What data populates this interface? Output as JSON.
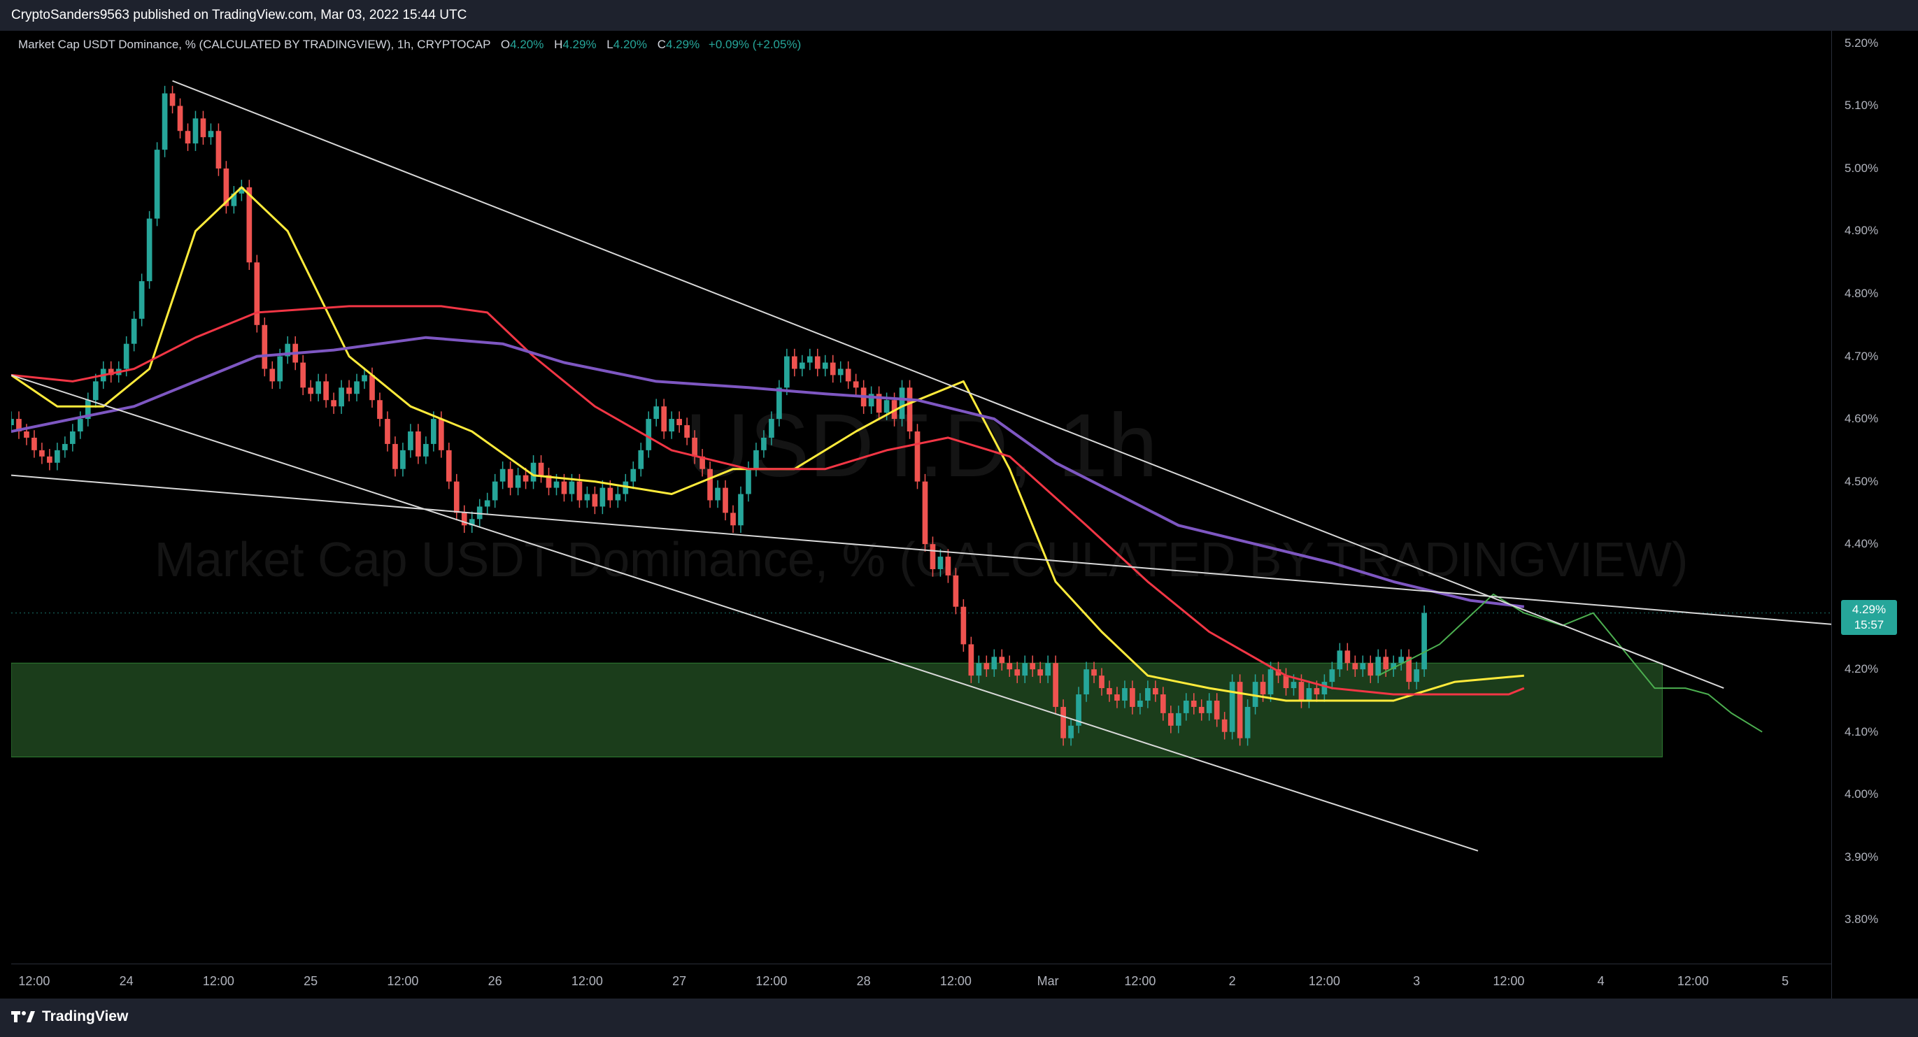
{
  "header": {
    "publish_text": "CryptoSanders9563 published on TradingView.com, Mar 03, 2022 15:44 UTC"
  },
  "legend": {
    "symbol": "Market Cap USDT Dominance, % (CALCULATED BY TRADINGVIEW), 1h, CRYPTOCAP",
    "o_label": "O",
    "o_value": "4.20%",
    "h_label": "H",
    "h_value": "4.29%",
    "l_label": "L",
    "l_value": "4.20%",
    "c_label": "C",
    "c_value": "4.29%",
    "change": "+0.09% (+2.05%)"
  },
  "watermark": {
    "ticker": "USDT.D, 1h",
    "name": "Market Cap USDT Dominance, % (CALCULATED BY TRADINGVIEW)"
  },
  "last_price": {
    "value": "4.29%",
    "countdown": "15:57"
  },
  "footer": {
    "brand": "TradingView"
  },
  "colors": {
    "up": "#26a69a",
    "down": "#ef5350",
    "ma_fast": "#ffeb3b",
    "ma_mid": "#f23645",
    "ma_slow": "#7e57c2",
    "zone": "#1b3d1b",
    "trendline": "#d9d9d9",
    "projection": "#4caf50"
  },
  "chart_data": {
    "type": "candlestick",
    "timeframe": "1h",
    "y_unit": "%",
    "ylim": [
      3.73,
      5.22
    ],
    "y_ticks": [
      "5.20%",
      "5.10%",
      "5.00%",
      "4.90%",
      "4.80%",
      "4.70%",
      "4.60%",
      "4.50%",
      "4.40%",
      "4.20%",
      "4.10%",
      "4.00%",
      "3.90%",
      "3.80%"
    ],
    "y_tick_values": [
      5.2,
      5.1,
      5.0,
      4.9,
      4.8,
      4.7,
      4.6,
      4.5,
      4.4,
      4.2,
      4.1,
      4.0,
      3.9,
      3.8
    ],
    "x_start": "2022-02-23 09:00",
    "x_end": "2022-03-05 06:00",
    "x_ticks": [
      {
        "label": "12:00",
        "t": "2022-02-23 12:00"
      },
      {
        "label": "24",
        "t": "2022-02-24 00:00"
      },
      {
        "label": "12:00",
        "t": "2022-02-24 12:00"
      },
      {
        "label": "25",
        "t": "2022-02-25 00:00"
      },
      {
        "label": "12:00",
        "t": "2022-02-25 12:00"
      },
      {
        "label": "26",
        "t": "2022-02-26 00:00"
      },
      {
        "label": "12:00",
        "t": "2022-02-26 12:00"
      },
      {
        "label": "27",
        "t": "2022-02-27 00:00"
      },
      {
        "label": "12:00",
        "t": "2022-02-27 12:00"
      },
      {
        "label": "28",
        "t": "2022-02-28 00:00"
      },
      {
        "label": "12:00",
        "t": "2022-02-28 12:00"
      },
      {
        "label": "Mar",
        "t": "2022-03-01 00:00"
      },
      {
        "label": "12:00",
        "t": "2022-03-01 12:00"
      },
      {
        "label": "2",
        "t": "2022-03-02 00:00"
      },
      {
        "label": "12:00",
        "t": "2022-03-02 12:00"
      },
      {
        "label": "3",
        "t": "2022-03-03 00:00"
      },
      {
        "label": "12:00",
        "t": "2022-03-03 12:00"
      },
      {
        "label": "4",
        "t": "2022-03-04 00:00"
      },
      {
        "label": "12:00",
        "t": "2022-03-04 12:00"
      },
      {
        "label": "5",
        "t": "2022-03-05 00:00"
      }
    ],
    "candles_start": "2022-02-23 09:00",
    "candles_close": [
      4.6,
      4.58,
      4.57,
      4.55,
      4.54,
      4.53,
      4.55,
      4.56,
      4.58,
      4.6,
      4.63,
      4.66,
      4.68,
      4.67,
      4.68,
      4.72,
      4.76,
      4.82,
      4.92,
      5.03,
      5.12,
      5.1,
      5.06,
      5.04,
      5.08,
      5.05,
      5.06,
      5.0,
      4.94,
      4.96,
      4.97,
      4.85,
      4.75,
      4.68,
      4.66,
      4.7,
      4.72,
      4.69,
      4.65,
      4.64,
      4.66,
      4.63,
      4.62,
      4.65,
      4.64,
      4.66,
      4.67,
      4.63,
      4.6,
      4.56,
      4.52,
      4.55,
      4.58,
      4.54,
      4.56,
      4.6,
      4.55,
      4.5,
      4.45,
      4.43,
      4.44,
      4.46,
      4.47,
      4.5,
      4.52,
      4.49,
      4.51,
      4.5,
      4.53,
      4.51,
      4.49,
      4.5,
      4.48,
      4.5,
      4.47,
      4.48,
      4.46,
      4.49,
      4.47,
      4.48,
      4.5,
      4.52,
      4.55,
      4.6,
      4.62,
      4.58,
      4.6,
      4.59,
      4.57,
      4.54,
      4.52,
      4.47,
      4.49,
      4.45,
      4.43,
      4.48,
      4.52,
      4.55,
      4.57,
      4.6,
      4.65,
      4.7,
      4.68,
      4.69,
      4.7,
      4.68,
      4.69,
      4.67,
      4.68,
      4.66,
      4.65,
      4.62,
      4.64,
      4.61,
      4.63,
      4.6,
      4.65,
      4.58,
      4.5,
      4.4,
      4.36,
      4.38,
      4.35,
      4.3,
      4.24,
      4.19,
      4.21,
      4.2,
      4.22,
      4.21,
      4.2,
      4.19,
      4.21,
      4.2,
      4.19,
      4.21,
      4.14,
      4.09,
      4.11,
      4.16,
      4.2,
      4.19,
      4.17,
      4.16,
      4.15,
      4.17,
      4.14,
      4.15,
      4.17,
      4.16,
      4.13,
      4.11,
      4.13,
      4.15,
      4.14,
      4.13,
      4.15,
      4.12,
      4.1,
      4.18,
      4.09,
      4.14,
      4.18,
      4.16,
      4.2,
      4.19,
      4.17,
      4.18,
      4.15,
      4.17,
      4.16,
      4.18,
      4.2,
      4.23,
      4.21,
      4.2,
      4.21,
      4.19,
      4.22,
      4.2,
      4.21,
      4.22,
      4.18,
      4.2,
      4.29
    ],
    "series": [
      {
        "name": "MA fast",
        "color": "#ffeb3b",
        "points": [
          [
            "2022-02-23 09:00",
            4.67
          ],
          [
            "2022-02-23 15:00",
            4.62
          ],
          [
            "2022-02-23 21:00",
            4.62
          ],
          [
            "2022-02-24 03:00",
            4.68
          ],
          [
            "2022-02-24 09:00",
            4.9
          ],
          [
            "2022-02-24 15:00",
            4.97
          ],
          [
            "2022-02-24 21:00",
            4.9
          ],
          [
            "2022-02-25 05:00",
            4.7
          ],
          [
            "2022-02-25 13:00",
            4.62
          ],
          [
            "2022-02-25 21:00",
            4.58
          ],
          [
            "2022-02-26 05:00",
            4.51
          ],
          [
            "2022-02-26 13:00",
            4.5
          ],
          [
            "2022-02-26 23:00",
            4.48
          ],
          [
            "2022-02-27 07:00",
            4.52
          ],
          [
            "2022-02-27 15:00",
            4.52
          ],
          [
            "2022-02-27 23:00",
            4.58
          ],
          [
            "2022-02-28 05:00",
            4.62
          ],
          [
            "2022-02-28 13:00",
            4.66
          ],
          [
            "2022-02-28 19:00",
            4.52
          ],
          [
            "2022-03-01 01:00",
            4.34
          ],
          [
            "2022-03-01 07:00",
            4.26
          ],
          [
            "2022-03-01 13:00",
            4.19
          ],
          [
            "2022-03-01 21:00",
            4.17
          ],
          [
            "2022-03-02 07:00",
            4.15
          ],
          [
            "2022-03-02 13:00",
            4.15
          ],
          [
            "2022-03-02 21:00",
            4.15
          ],
          [
            "2022-03-03 05:00",
            4.18
          ],
          [
            "2022-03-03 14:00",
            4.19
          ]
        ]
      },
      {
        "name": "MA mid",
        "color": "#f23645",
        "points": [
          [
            "2022-02-23 09:00",
            4.67
          ],
          [
            "2022-02-23 17:00",
            4.66
          ],
          [
            "2022-02-24 01:00",
            4.68
          ],
          [
            "2022-02-24 09:00",
            4.73
          ],
          [
            "2022-02-24 17:00",
            4.77
          ],
          [
            "2022-02-25 05:00",
            4.78
          ],
          [
            "2022-02-25 17:00",
            4.78
          ],
          [
            "2022-02-25 23:00",
            4.77
          ],
          [
            "2022-02-26 05:00",
            4.7
          ],
          [
            "2022-02-26 13:00",
            4.62
          ],
          [
            "2022-02-26 23:00",
            4.55
          ],
          [
            "2022-02-27 09:00",
            4.52
          ],
          [
            "2022-02-27 19:00",
            4.52
          ],
          [
            "2022-02-28 03:00",
            4.55
          ],
          [
            "2022-02-28 11:00",
            4.57
          ],
          [
            "2022-02-28 19:00",
            4.54
          ],
          [
            "2022-03-01 05:00",
            4.43
          ],
          [
            "2022-03-01 13:00",
            4.34
          ],
          [
            "2022-03-01 21:00",
            4.26
          ],
          [
            "2022-03-02 07:00",
            4.19
          ],
          [
            "2022-03-02 13:00",
            4.17
          ],
          [
            "2022-03-02 21:00",
            4.16
          ],
          [
            "2022-03-03 05:00",
            4.16
          ],
          [
            "2022-03-03 12:00",
            4.16
          ],
          [
            "2022-03-03 14:00",
            4.17
          ]
        ]
      },
      {
        "name": "MA slow",
        "color": "#7e57c2",
        "points": [
          [
            "2022-02-23 09:00",
            4.58
          ],
          [
            "2022-02-23 17:00",
            4.6
          ],
          [
            "2022-02-24 01:00",
            4.62
          ],
          [
            "2022-02-24 09:00",
            4.66
          ],
          [
            "2022-02-24 17:00",
            4.7
          ],
          [
            "2022-02-25 03:00",
            4.71
          ],
          [
            "2022-02-25 15:00",
            4.73
          ],
          [
            "2022-02-26 01:00",
            4.72
          ],
          [
            "2022-02-26 09:00",
            4.69
          ],
          [
            "2022-02-26 21:00",
            4.66
          ],
          [
            "2022-02-27 09:00",
            4.65
          ],
          [
            "2022-02-27 19:00",
            4.64
          ],
          [
            "2022-02-28 07:00",
            4.63
          ],
          [
            "2022-02-28 17:00",
            4.6
          ],
          [
            "2022-03-01 01:00",
            4.53
          ],
          [
            "2022-03-01 09:00",
            4.48
          ],
          [
            "2022-03-01 17:00",
            4.43
          ],
          [
            "2022-03-02 03:00",
            4.4
          ],
          [
            "2022-03-02 13:00",
            4.37
          ],
          [
            "2022-03-02 21:00",
            4.34
          ],
          [
            "2022-03-03 07:00",
            4.31
          ],
          [
            "2022-03-03 14:00",
            4.3
          ]
        ]
      },
      {
        "name": "Projection",
        "color": "#4caf50",
        "points": [
          [
            "2022-03-02 19:00",
            4.19
          ],
          [
            "2022-03-03 03:00",
            4.24
          ],
          [
            "2022-03-03 10:00",
            4.32
          ],
          [
            "2022-03-03 14:00",
            4.29
          ],
          [
            "2022-03-03 19:00",
            4.27
          ],
          [
            "2022-03-03 23:00",
            4.29
          ],
          [
            "2022-03-04 07:00",
            4.17
          ],
          [
            "2022-03-04 11:00",
            4.17
          ],
          [
            "2022-03-04 14:00",
            4.16
          ],
          [
            "2022-03-04 17:00",
            4.13
          ],
          [
            "2022-03-04 21:00",
            4.1
          ]
        ]
      }
    ],
    "trendlines": [
      {
        "name": "channel-top",
        "from": [
          "2022-02-24 06:00",
          5.14
        ],
        "to": [
          "2022-03-04 16:00",
          4.17
        ]
      },
      {
        "name": "channel-bottom",
        "from": [
          "2022-02-23 09:00",
          4.67
        ],
        "to": [
          "2022-03-03 08:00",
          3.91
        ]
      },
      {
        "name": "horizontal-resistance",
        "from": [
          "2022-02-23 09:00",
          4.51
        ],
        "to": [
          "2022-03-05 08:00",
          4.27
        ]
      }
    ],
    "zone": {
      "from": "2022-02-23 09:00",
      "to": "2022-03-04 08:00",
      "low": 4.06,
      "high": 4.21
    },
    "last_price_line": 4.29
  }
}
